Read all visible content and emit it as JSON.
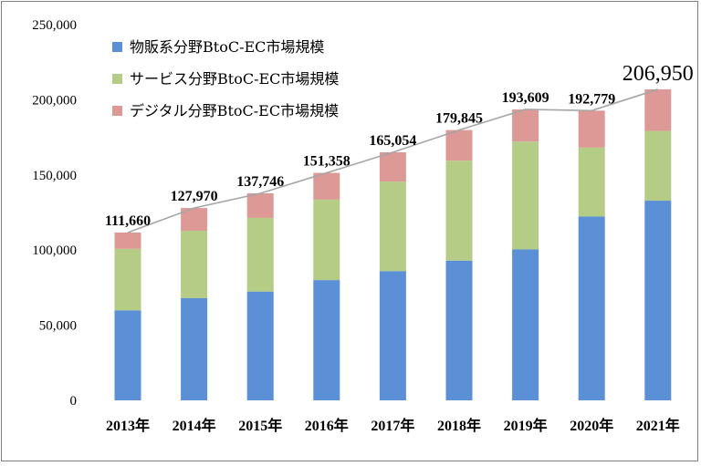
{
  "chart_data": {
    "type": "bar",
    "stacked": true,
    "categories": [
      "2013年",
      "2014年",
      "2015年",
      "2016年",
      "2017年",
      "2018年",
      "2019年",
      "2020年",
      "2021年"
    ],
    "series": [
      {
        "name": "物販系分野BtoC-EC市場規模",
        "color": "#5b8fd6",
        "values": [
          59931,
          68043,
          72398,
          80043,
          86008,
          92992,
          100515,
          122333,
          132865
        ]
      },
      {
        "name": "サービス分野BtoC-EC市場規模",
        "color": "#b5cc86",
        "values": [
          40888,
          44816,
          49014,
          53532,
          59568,
          66471,
          71672,
          45832,
          46424
        ]
      },
      {
        "name": "デジタル分野BtoC-EC市場規模",
        "color": "#dc9995",
        "values": [
          10841,
          15111,
          16334,
          17783,
          19478,
          20382,
          21422,
          24614,
          27661
        ]
      }
    ],
    "totals": [
      111660,
      127970,
      137746,
      151358,
      165054,
      179845,
      193609,
      192779,
      206950
    ],
    "total_labels": [
      "111,660",
      "127,970",
      "137,746",
      "151,358",
      "165,054",
      "179,845",
      "193,609",
      "192,779",
      "206,950"
    ],
    "yticks": [
      "0",
      "50,000",
      "100,000",
      "150,000",
      "200,000",
      "250,000"
    ],
    "ylim": [
      0,
      250000
    ],
    "grid": false,
    "legend_position": "top-left",
    "total_line_color": "#a6a6a6"
  }
}
